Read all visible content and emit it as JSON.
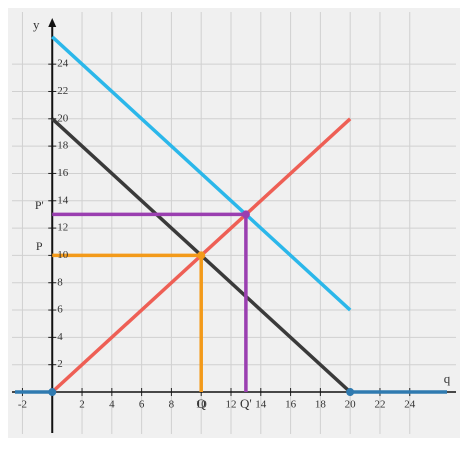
{
  "chart_data": {
    "type": "line",
    "x_label": "q",
    "y_label": "y",
    "xlim": [
      -2.5,
      26.5
    ],
    "ylim": [
      -3,
      26.5
    ],
    "xticks": [
      -2,
      2,
      4,
      6,
      8,
      10,
      12,
      14,
      16,
      18,
      20,
      22,
      24
    ],
    "yticks": [
      2,
      4,
      6,
      8,
      10,
      12,
      14,
      16,
      18,
      20,
      22,
      24
    ],
    "grid": true,
    "series": [
      {
        "color": "#2bb7ea",
        "x": [
          0,
          20
        ],
        "values": [
          26,
          6
        ]
      },
      {
        "color": "#3a3a3a",
        "x": [
          0,
          20
        ],
        "values": [
          20,
          0
        ]
      },
      {
        "color": "#ee5f55",
        "x": [
          0,
          20
        ],
        "values": [
          0,
          20
        ]
      },
      {
        "color": "#2f7ab0",
        "x": [
          -2.5,
          0
        ],
        "values": [
          0,
          0
        ]
      },
      {
        "color": "#2f7ab0",
        "x": [
          20,
          26.5
        ],
        "values": [
          0,
          0
        ]
      },
      {
        "color": "#f39a1a",
        "x": [
          0,
          10,
          10
        ],
        "values": [
          10,
          10,
          0
        ],
        "price_label": "P",
        "quantity_label": "Q"
      },
      {
        "color": "#9a3fb0",
        "x": [
          0,
          13,
          13
        ],
        "values": [
          13,
          13,
          0
        ],
        "price_label": "P'",
        "quantity_label": "Q'"
      }
    ],
    "points": {
      "x": [
        0,
        20,
        10,
        13
      ],
      "values": [
        0,
        0,
        10,
        13
      ],
      "colors": [
        "#2f7ab0",
        "#2f7ab0",
        "#f39a1a",
        "#9a3fb0"
      ]
    }
  }
}
